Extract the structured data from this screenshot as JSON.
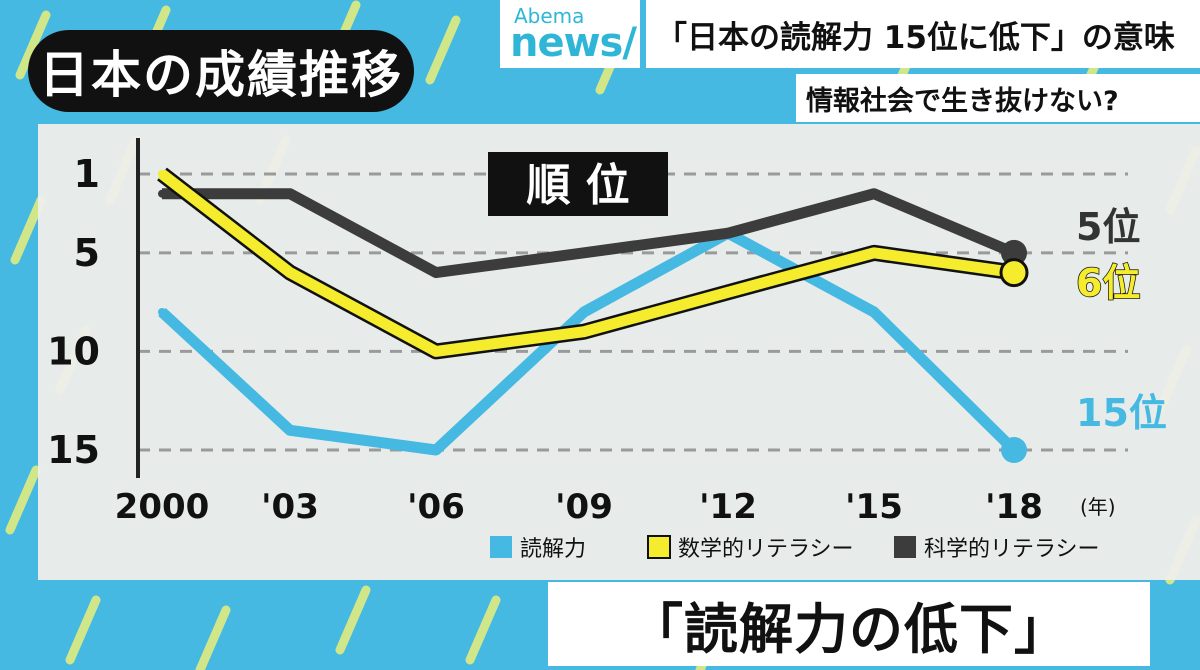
{
  "header": {
    "title": "日本の成績推移",
    "logo_small": "Abema",
    "logo_big": "news/",
    "headline": "「日本の読解力 15位に低下」の意味",
    "subheadline": "情報社会で生き抜けない?"
  },
  "caption": "「読解力の低下」",
  "colors": {
    "background": "#45b9e2",
    "reading": "#45b9e2",
    "math": "#f4ec2c",
    "science": "#3c3c3c"
  },
  "chart_data": {
    "type": "line",
    "title": "順 位",
    "x": [
      "2000",
      "'03",
      "'06",
      "'09",
      "'12",
      "'15",
      "'18"
    ],
    "x_unit": "(年)",
    "y_ticks": [
      1,
      5,
      10,
      15
    ],
    "ylim": [
      1,
      15
    ],
    "y_inverted": true,
    "grid": true,
    "legend_position": "bottom",
    "series": [
      {
        "name": "読解力",
        "values": [
          8,
          14,
          15,
          8,
          4,
          8,
          15
        ],
        "end_label": "15位"
      },
      {
        "name": "数学的リテラシー",
        "values": [
          1,
          6,
          10,
          9,
          7,
          5,
          6
        ],
        "end_label": "6位"
      },
      {
        "name": "科学的リテラシー",
        "values": [
          2,
          2,
          6,
          5,
          4,
          2,
          5
        ],
        "end_label": "5位"
      }
    ]
  }
}
